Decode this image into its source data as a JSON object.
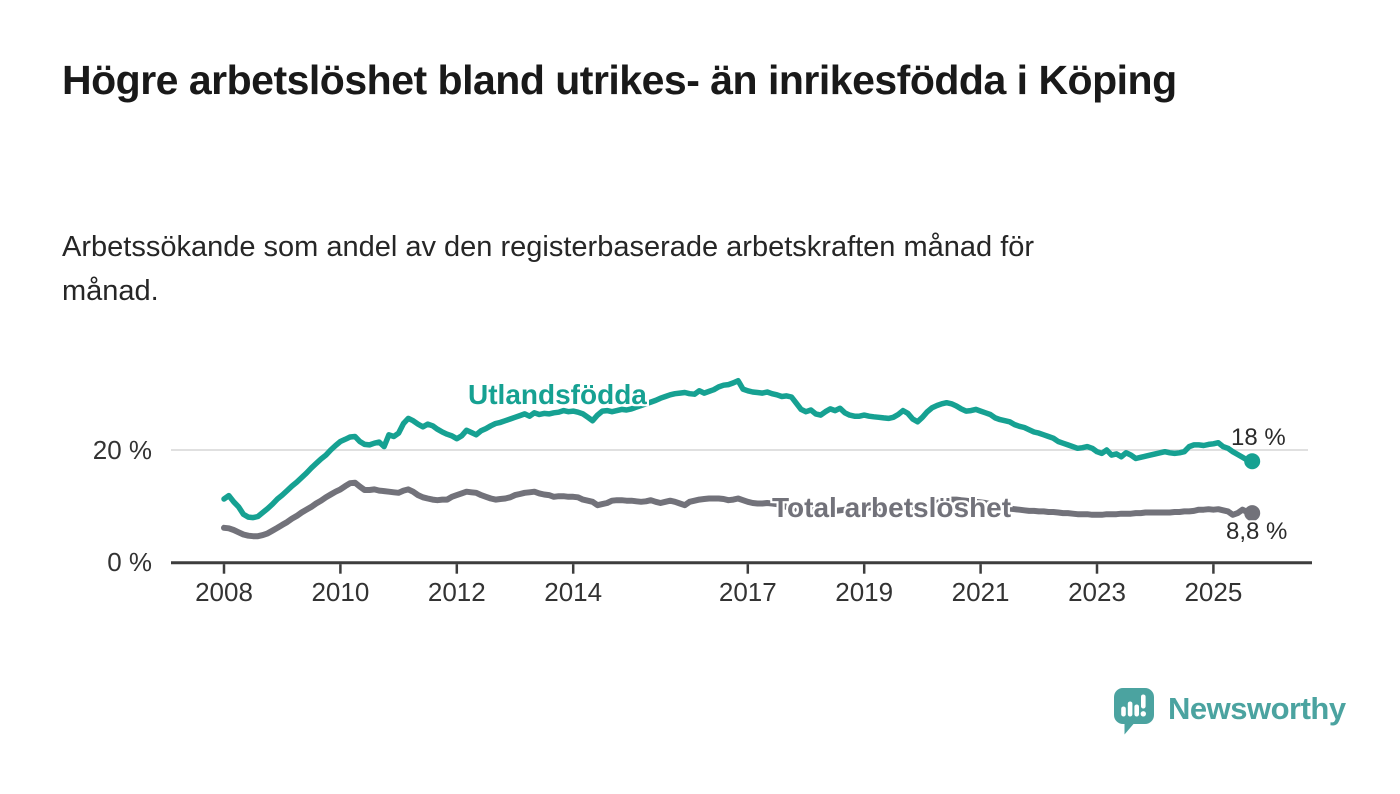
{
  "header": {
    "title": "Högre arbetslöshet bland utrikes- än inrikesfödda i Köping",
    "subtitle": "Arbetssökande som andel av den registerbaserade arbetskraften månad för månad."
  },
  "footer": {
    "brand": "Newsworthy"
  },
  "colors": {
    "accent_teal": "#16a192",
    "series_gray": "#72727a",
    "gridline": "#e0e0e0",
    "axis": "#3d3d3d",
    "logo_teal": "#4ba3a0"
  },
  "chart_data": {
    "type": "line",
    "title": "Högre arbetslöshet bland utrikes- än inrikesfödda i Köping",
    "subtitle": "Arbetssökande som andel av den registerbaserade arbetskraften månad för månad.",
    "x_unit": "month",
    "x_start": "2008-01",
    "x_end": "2025-09",
    "x_tick_years": [
      2008,
      2010,
      2012,
      2014,
      2017,
      2019,
      2021,
      2023,
      2025
    ],
    "x_tick_labels": [
      "2008",
      "2010",
      "2012",
      "2014",
      "2017",
      "2019",
      "2021",
      "2023",
      "2025"
    ],
    "y_ticks": [
      {
        "value": 20,
        "label": "20 %"
      },
      {
        "value": 0,
        "label": "0 %"
      }
    ],
    "ylim": [
      0,
      34
    ],
    "grid": "single horizontal gridline at 20 %",
    "legend_position": "inline-labels-on-lines",
    "series": [
      {
        "name": "Utlandsfödda",
        "color": "#16a192",
        "end_label": "18 %",
        "end_value": 18.0,
        "monthly_values": [
          11.3,
          11.9,
          10.8,
          9.9,
          8.6,
          8.1,
          8.0,
          8.2,
          8.9,
          9.6,
          10.4,
          11.3,
          12.0,
          12.8,
          13.6,
          14.3,
          15.1,
          15.9,
          16.8,
          17.6,
          18.4,
          19.1,
          20.0,
          20.8,
          21.5,
          21.9,
          22.3,
          22.4,
          21.5,
          21.0,
          20.9,
          21.2,
          21.4,
          20.6,
          22.7,
          22.4,
          23.0,
          24.7,
          25.6,
          25.2,
          24.6,
          24.1,
          24.6,
          24.3,
          23.7,
          23.2,
          22.8,
          22.5,
          22.0,
          22.5,
          23.5,
          23.1,
          22.7,
          23.4,
          23.8,
          24.3,
          24.7,
          24.9,
          25.2,
          25.5,
          25.8,
          26.1,
          26.4,
          26.0,
          26.6,
          26.3,
          26.5,
          26.4,
          26.6,
          26.7,
          27.0,
          26.8,
          26.9,
          26.7,
          26.4,
          25.8,
          25.2,
          26.2,
          26.9,
          27.0,
          26.8,
          27.0,
          27.2,
          27.1,
          27.3,
          27.6,
          27.9,
          28.2,
          28.5,
          28.8,
          29.2,
          29.5,
          29.8,
          30.0,
          30.1,
          30.2,
          30.0,
          29.9,
          30.5,
          30.1,
          30.4,
          30.7,
          31.2,
          31.5,
          31.6,
          31.9,
          32.3,
          30.8,
          30.5,
          30.3,
          30.2,
          30.1,
          30.3,
          30.0,
          29.8,
          29.5,
          29.6,
          29.4,
          28.3,
          27.2,
          26.8,
          27.1,
          26.4,
          26.2,
          26.8,
          27.3,
          27.0,
          27.4,
          26.6,
          26.2,
          26.0,
          26.0,
          26.2,
          26.0,
          25.9,
          25.8,
          25.7,
          25.6,
          25.8,
          26.3,
          27.0,
          26.5,
          25.5,
          25.0,
          25.8,
          26.8,
          27.5,
          27.9,
          28.2,
          28.4,
          28.2,
          27.8,
          27.3,
          26.9,
          27.0,
          27.2,
          26.9,
          26.6,
          26.3,
          25.7,
          25.4,
          25.2,
          25.0,
          24.5,
          24.2,
          24.0,
          23.6,
          23.2,
          23.0,
          22.7,
          22.4,
          22.1,
          21.5,
          21.2,
          20.9,
          20.6,
          20.3,
          20.4,
          20.6,
          20.3,
          19.7,
          19.4,
          20.0,
          19.1,
          19.3,
          18.8,
          19.5,
          19.1,
          18.5,
          18.7,
          18.9,
          19.1,
          19.3,
          19.5,
          19.7,
          19.5,
          19.4,
          19.5,
          19.7,
          20.6,
          20.9,
          20.9,
          20.8,
          21.0,
          21.1,
          21.3,
          20.6,
          20.3,
          19.7,
          19.2,
          18.7,
          18.2,
          18.0
        ]
      },
      {
        "name": "Total arbetslöshet",
        "color": "#72727a",
        "end_label": "8,8 %",
        "end_value": 8.8,
        "monthly_values": [
          6.2,
          6.1,
          5.8,
          5.4,
          5.0,
          4.8,
          4.7,
          4.7,
          4.9,
          5.2,
          5.7,
          6.2,
          6.7,
          7.2,
          7.8,
          8.3,
          8.9,
          9.4,
          9.9,
          10.5,
          11.0,
          11.6,
          12.1,
          12.6,
          13.0,
          13.6,
          14.1,
          14.2,
          13.5,
          12.9,
          12.9,
          13.0,
          12.8,
          12.7,
          12.6,
          12.5,
          12.4,
          12.8,
          13.0,
          12.6,
          12.0,
          11.6,
          11.4,
          11.2,
          11.1,
          11.2,
          11.2,
          11.7,
          12.0,
          12.3,
          12.6,
          12.5,
          12.4,
          12.0,
          11.7,
          11.4,
          11.2,
          11.3,
          11.4,
          11.6,
          12.0,
          12.2,
          12.4,
          12.5,
          12.6,
          12.3,
          12.1,
          12.0,
          11.7,
          11.8,
          11.8,
          11.7,
          11.7,
          11.6,
          11.2,
          11.0,
          10.8,
          10.2,
          10.4,
          10.6,
          11.0,
          11.1,
          11.1,
          11.0,
          11.0,
          10.9,
          10.8,
          10.9,
          11.1,
          10.8,
          10.6,
          10.8,
          11.0,
          10.8,
          10.5,
          10.2,
          10.8,
          11.0,
          11.2,
          11.3,
          11.4,
          11.4,
          11.4,
          11.3,
          11.1,
          11.2,
          11.4,
          11.1,
          10.8,
          10.6,
          10.5,
          10.5,
          10.6,
          10.5,
          10.4,
          10.2,
          9.9,
          9.7,
          9.4,
          9.3,
          9.4,
          9.5,
          9.5,
          9.4,
          9.3,
          9.2,
          9.2,
          9.3,
          9.4,
          9.4,
          9.5,
          9.6,
          9.7,
          9.8,
          9.8,
          9.7,
          9.6,
          9.6,
          9.7,
          9.7,
          9.8,
          9.8,
          9.9,
          10.0,
          10.0,
          9.9,
          10.1,
          10.6,
          10.9,
          11.1,
          11.2,
          11.2,
          11.1,
          11.0,
          10.9,
          10.8,
          10.7,
          10.6,
          10.4,
          10.2,
          10.0,
          9.8,
          9.6,
          9.5,
          9.4,
          9.3,
          9.2,
          9.2,
          9.1,
          9.1,
          9.0,
          9.0,
          8.9,
          8.8,
          8.8,
          8.7,
          8.6,
          8.6,
          8.6,
          8.5,
          8.5,
          8.5,
          8.6,
          8.6,
          8.6,
          8.7,
          8.7,
          8.7,
          8.8,
          8.8,
          8.9,
          8.9,
          8.9,
          8.9,
          8.9,
          8.9,
          9.0,
          9.0,
          9.1,
          9.1,
          9.2,
          9.4,
          9.4,
          9.5,
          9.4,
          9.5,
          9.3,
          9.1,
          8.5,
          8.8,
          9.4,
          9.0,
          8.8
        ]
      }
    ]
  }
}
